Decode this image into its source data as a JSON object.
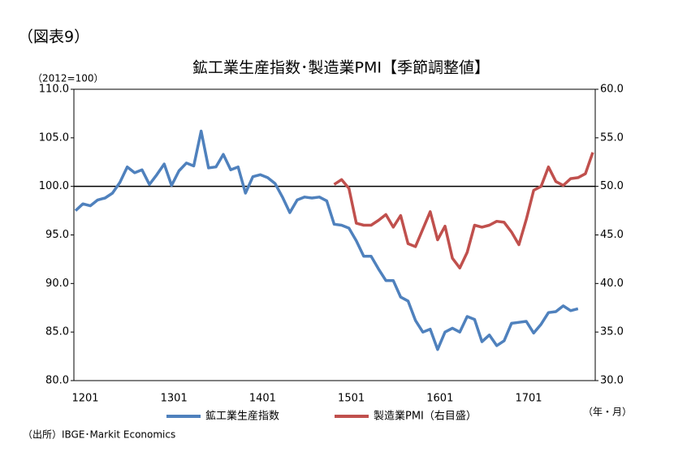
{
  "chart_data": {
    "type": "line",
    "figure_label": "（図表9）",
    "title": "鉱工業生産指数･製造業PMI【季節調整値】",
    "y_unit": "（2012=100）",
    "x_unit": "（年・月）",
    "source": "（出所）IBGE･Markit Economics",
    "categories": [
      "1201",
      null,
      null,
      null,
      null,
      null,
      null,
      null,
      null,
      null,
      null,
      null,
      "1301",
      null,
      null,
      null,
      null,
      null,
      null,
      null,
      null,
      null,
      null,
      null,
      "1401",
      null,
      null,
      null,
      null,
      null,
      null,
      null,
      null,
      null,
      null,
      null,
      "1501",
      null,
      null,
      null,
      null,
      null,
      null,
      null,
      null,
      null,
      null,
      null,
      "1601",
      null,
      null,
      null,
      null,
      null,
      null,
      null,
      null,
      null,
      null,
      null,
      "1701",
      null,
      null,
      null,
      null,
      null,
      null,
      null,
      null,
      null,
      null
    ],
    "series": [
      {
        "name": "鉱工業生産指数",
        "color": "#4f81bd",
        "values": [
          97.5,
          98.2,
          98.0,
          98.6,
          98.8,
          99.3,
          100.4,
          102.0,
          101.4,
          101.7,
          100.2,
          101.2,
          102.3,
          100.1,
          101.6,
          102.4,
          102.1,
          105.7,
          101.9,
          102.0,
          103.3,
          101.7,
          102.0,
          99.3,
          101.0,
          101.2,
          100.9,
          100.3,
          98.9,
          97.3,
          98.6,
          98.9,
          98.8,
          98.9,
          98.5,
          96.1,
          96.0,
          95.7,
          94.4,
          92.8,
          92.8,
          91.5,
          90.3,
          90.3,
          88.6,
          88.2,
          86.2,
          85.0,
          85.3,
          83.2,
          85.0,
          85.4,
          85.0,
          86.6,
          86.3,
          84.0,
          84.7,
          83.6,
          84.1,
          85.9,
          86.0,
          86.1,
          84.9,
          85.8,
          87.0,
          87.1,
          87.7,
          87.2,
          87.4,
          null,
          null
        ]
      },
      {
        "name": "製造業PMI（右目盛）",
        "color": "#c0504d",
        "axis": "y2",
        "values": [
          null,
          null,
          null,
          null,
          null,
          null,
          null,
          null,
          null,
          null,
          null,
          null,
          null,
          null,
          null,
          null,
          null,
          null,
          null,
          null,
          null,
          null,
          null,
          null,
          null,
          null,
          null,
          null,
          null,
          null,
          null,
          null,
          null,
          null,
          null,
          50.2,
          50.7,
          49.8,
          46.2,
          46.0,
          46.0,
          46.5,
          47.1,
          45.8,
          47.0,
          44.1,
          43.8,
          45.6,
          47.4,
          44.5,
          45.9,
          42.6,
          41.6,
          43.2,
          46.0,
          45.8,
          46.0,
          46.4,
          46.3,
          45.3,
          44.0,
          46.6,
          49.6,
          50.0,
          52.0,
          50.5,
          50.1,
          50.8,
          50.9,
          51.3,
          53.5
        ]
      }
    ],
    "ylim": [
      80,
      110
    ],
    "yticks": [
      {
        "value": 80,
        "label": "80.0"
      },
      {
        "value": 85,
        "label": "85.0"
      },
      {
        "value": 90,
        "label": "90.0"
      },
      {
        "value": 95,
        "label": "95.0"
      },
      {
        "value": 100,
        "label": "100.0"
      },
      {
        "value": 105,
        "label": "105.0"
      },
      {
        "value": 110,
        "label": "110.0"
      }
    ],
    "y2lim": [
      30,
      60
    ],
    "y2ticks": [
      {
        "value": 30,
        "label": "30.0"
      },
      {
        "value": 35,
        "label": "35.0"
      },
      {
        "value": 40,
        "label": "40.0"
      },
      {
        "value": 45,
        "label": "45.0"
      },
      {
        "value": 50,
        "label": "50.0"
      },
      {
        "value": 55,
        "label": "55.0"
      },
      {
        "value": 60,
        "label": "60.0"
      }
    ],
    "reference_line": 100
  }
}
